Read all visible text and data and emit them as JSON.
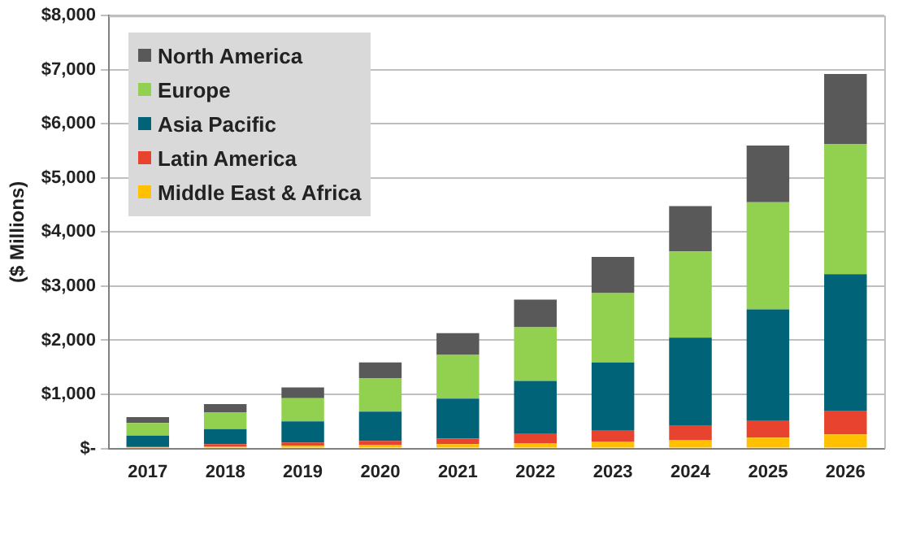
{
  "chart_data": {
    "type": "bar",
    "stacked": true,
    "ylabel": "($ Millions)",
    "categories": [
      "2017",
      "2018",
      "2019",
      "2020",
      "2021",
      "2022",
      "2023",
      "2024",
      "2025",
      "2026"
    ],
    "series": [
      {
        "name": "Middle East & Africa",
        "color": "#ffc000",
        "values": [
          20,
          30,
          50,
          60,
          80,
          100,
          120,
          150,
          200,
          260
        ]
      },
      {
        "name": "Latin America",
        "color": "#e8432e",
        "values": [
          20,
          50,
          60,
          80,
          100,
          170,
          220,
          270,
          320,
          430
        ]
      },
      {
        "name": "Asia Pacific",
        "color": "#006378",
        "values": [
          200,
          280,
          390,
          540,
          740,
          980,
          1250,
          1630,
          2050,
          2530
        ]
      },
      {
        "name": "Europe",
        "color": "#92d050",
        "values": [
          230,
          310,
          430,
          620,
          810,
          990,
          1280,
          1590,
          1980,
          2410
        ]
      },
      {
        "name": "North America",
        "color": "#595959",
        "values": [
          110,
          150,
          200,
          290,
          400,
          510,
          670,
          840,
          1050,
          1290
        ]
      }
    ],
    "ylim": [
      0,
      8000
    ],
    "yticks": [
      {
        "value": 0,
        "label": "$-"
      },
      {
        "value": 1000,
        "label": "$1,000"
      },
      {
        "value": 2000,
        "label": "$2,000"
      },
      {
        "value": 3000,
        "label": "$3,000"
      },
      {
        "value": 4000,
        "label": "$4,000"
      },
      {
        "value": 5000,
        "label": "$5,000"
      },
      {
        "value": 6000,
        "label": "$6,000"
      },
      {
        "value": 7000,
        "label": "$7,000"
      },
      {
        "value": 8000,
        "label": "$8,000"
      }
    ],
    "grid": "y",
    "legend": "top left"
  }
}
